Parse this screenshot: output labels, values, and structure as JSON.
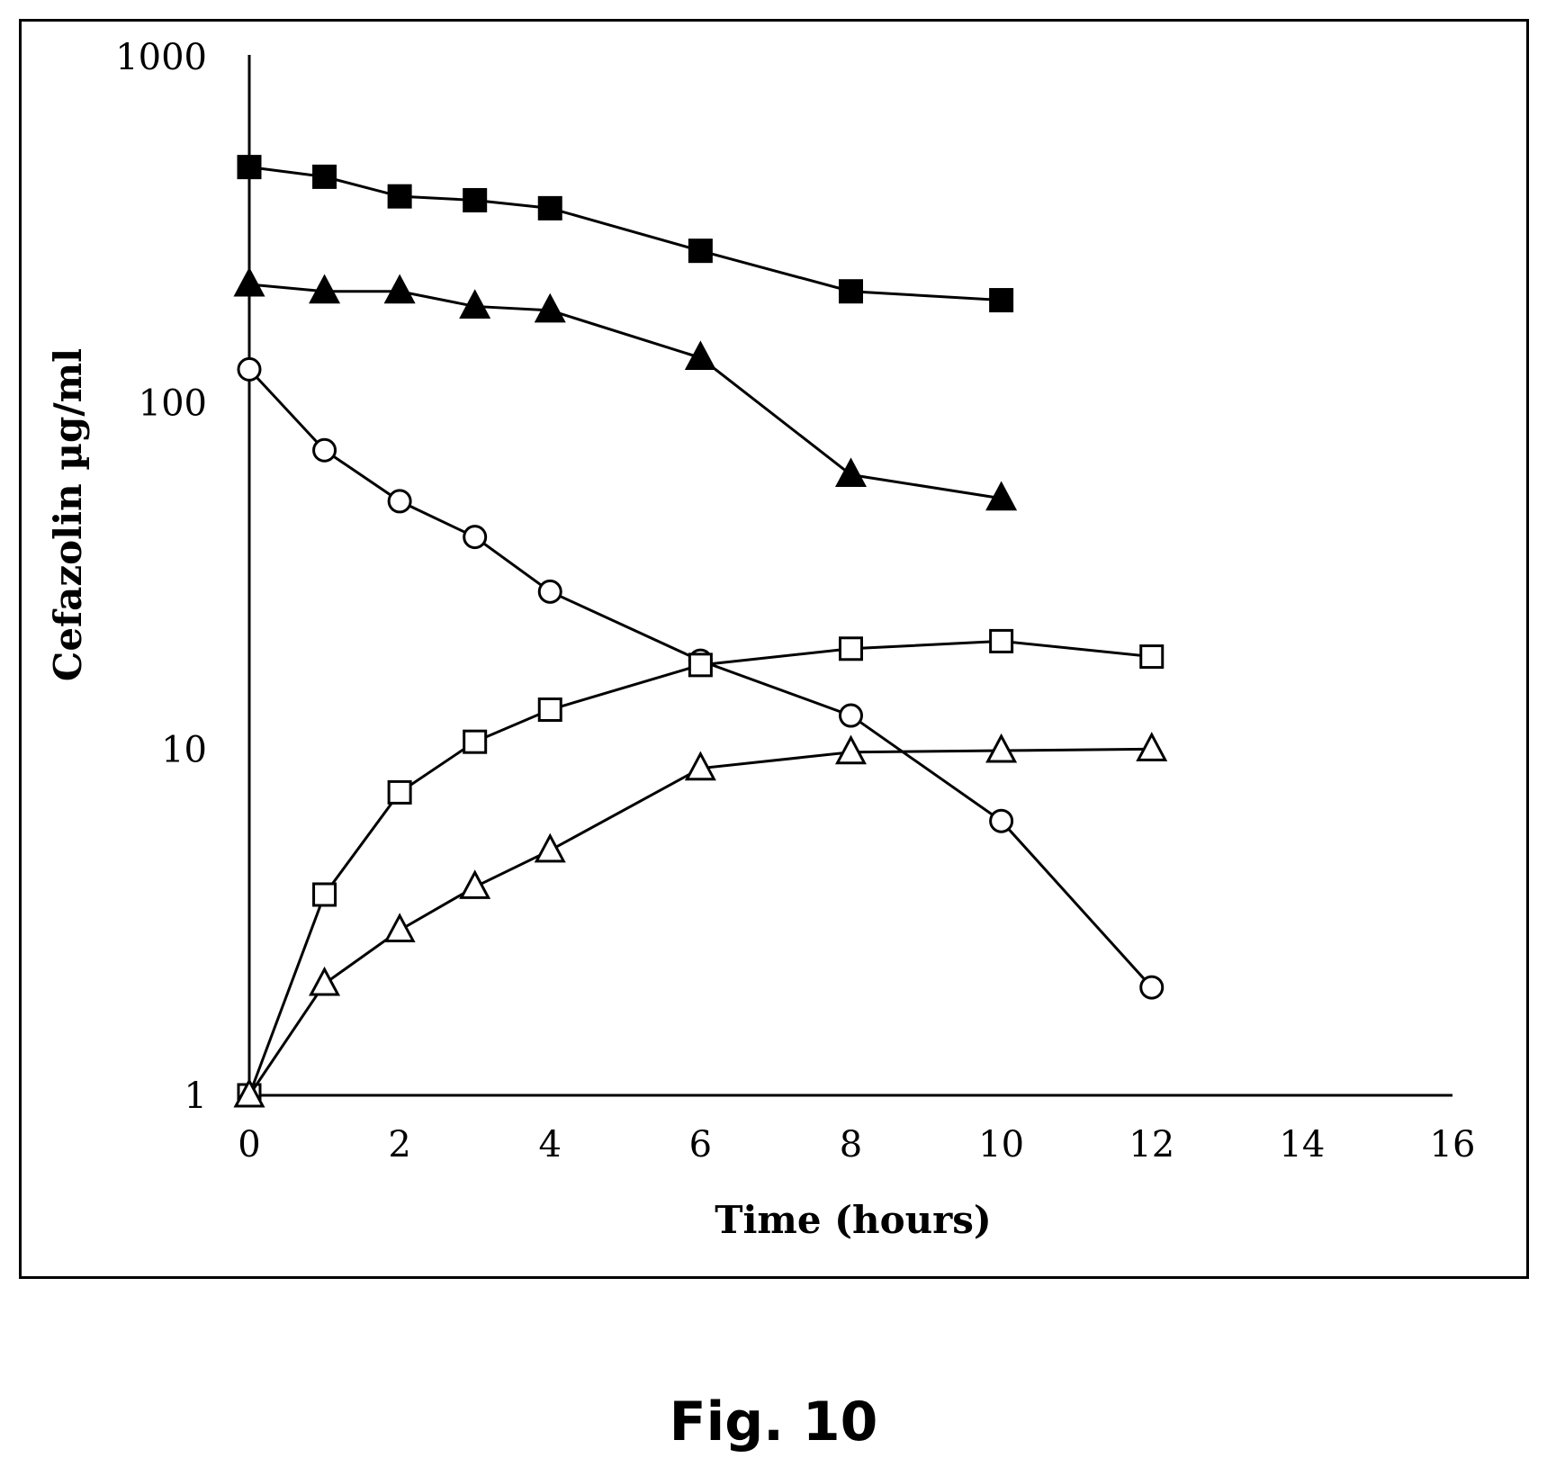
{
  "caption": "Fig. 10",
  "chart_data": {
    "type": "line",
    "xlabel": "Time (hours)",
    "ylabel": "Cefazolin  µg/ml",
    "xlim": [
      0,
      16
    ],
    "ylim": [
      1,
      1000
    ],
    "yscale": "log",
    "xticks": [
      "0",
      "2",
      "4",
      "6",
      "8",
      "10",
      "12",
      "14",
      "16"
    ],
    "yticks": [
      "1",
      "10",
      "100",
      "1000"
    ],
    "grid": false,
    "legend": "none",
    "series": [
      {
        "marker": "square-filled",
        "x": [
          0,
          1,
          2,
          3,
          4,
          6,
          8,
          10
        ],
        "y": [
          480,
          450,
          395,
          385,
          365,
          275,
          210,
          198
        ]
      },
      {
        "marker": "triangle-filled",
        "x": [
          0,
          1,
          2,
          3,
          4,
          6,
          8,
          10
        ],
        "y": [
          220,
          210,
          210,
          190,
          185,
          135,
          62,
          53
        ]
      },
      {
        "marker": "circle-open",
        "x": [
          0,
          1,
          2,
          3,
          4,
          6,
          8,
          10,
          12
        ],
        "y": [
          125,
          73,
          52,
          41,
          28.5,
          18,
          12.5,
          6.2,
          2.05
        ]
      },
      {
        "marker": "square-open",
        "x": [
          0,
          1,
          2,
          3,
          4,
          6,
          8,
          10,
          12
        ],
        "y": [
          1,
          3.8,
          7.5,
          10.5,
          13,
          17.5,
          19.5,
          20.5,
          18.5
        ]
      },
      {
        "marker": "triangle-open",
        "x": [
          0,
          1,
          2,
          3,
          4,
          6,
          8,
          10,
          12
        ],
        "y": [
          1,
          2.1,
          3,
          4,
          5.1,
          8.8,
          9.8,
          9.9,
          10
        ]
      }
    ]
  }
}
